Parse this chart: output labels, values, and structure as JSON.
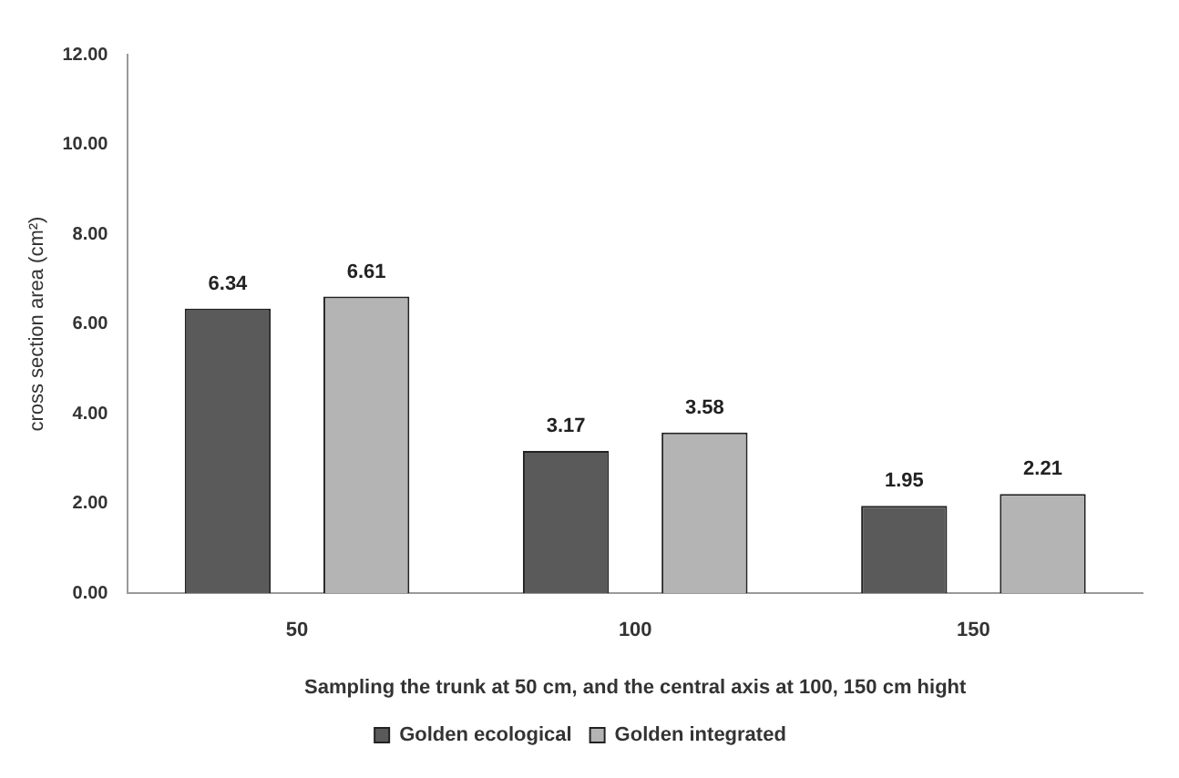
{
  "chart_data": {
    "type": "bar",
    "xlabel": "Sampling the trunk at 50 cm, and the central axis at 100, 150 cm hight",
    "ylabel": "cross section area (cm²)",
    "categories": [
      "50",
      "100",
      "150"
    ],
    "series": [
      {
        "name": "Golden ecological",
        "color": "#5a5a5a",
        "values": [
          6.34,
          3.17,
          1.95
        ]
      },
      {
        "name": "Golden integrated",
        "color": "#b4b4b4",
        "values": [
          6.61,
          3.58,
          2.21
        ]
      }
    ],
    "ylim": [
      0,
      12
    ],
    "yticks": [
      {
        "value": 0,
        "label": "0.00"
      },
      {
        "value": 2,
        "label": "2.00"
      },
      {
        "value": 4,
        "label": "4.00"
      },
      {
        "value": 6,
        "label": "6.00"
      },
      {
        "value": 8,
        "label": "8.00"
      },
      {
        "value": 10,
        "label": "10.00"
      },
      {
        "value": 12,
        "label": "12.00"
      }
    ],
    "data_labels": true,
    "legend": "bottom",
    "grid": false
  }
}
